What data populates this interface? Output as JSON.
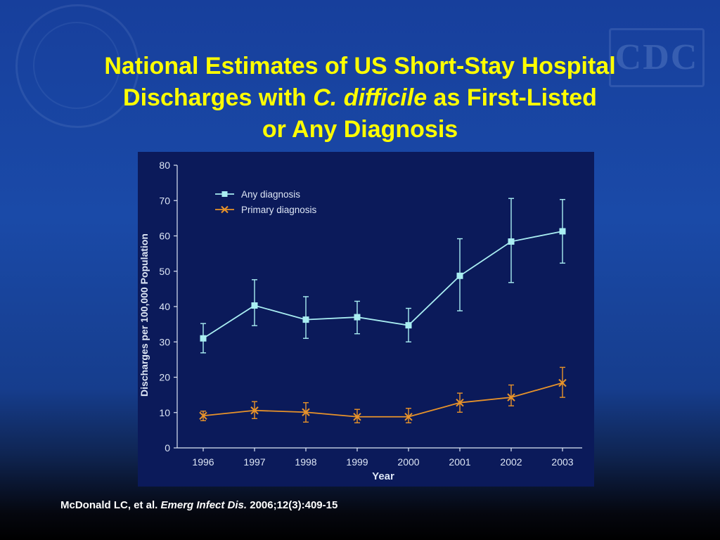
{
  "slide": {
    "title_line1": "National Estimates of US Short-Stay Hospital",
    "title_line2_prefix": "Discharges with ",
    "title_line2_italic": "C. difficile",
    "title_line2_suffix": " as First-Listed",
    "title_line3": "or Any Diagnosis",
    "citation_authors": "McDonald LC, et al. ",
    "citation_journal": "Emerg Infect Dis.",
    "citation_details": " 2006;12(3):409-15",
    "watermark_text": "CDC"
  },
  "colors": {
    "title": "#ffff00",
    "panel": "#0b1a5a",
    "any_diagnosis": "#a9eef2",
    "primary_diagnosis": "#e8932a",
    "axis": "#dde6f5"
  },
  "chart_data": {
    "type": "line",
    "title": "",
    "xlabel": "Year",
    "ylabel": "Discharges per 100,000 Population",
    "ylim": [
      0,
      80
    ],
    "yticks": [
      0,
      10,
      20,
      30,
      40,
      50,
      60,
      70,
      80
    ],
    "categories": [
      "1996",
      "1997",
      "1998",
      "1999",
      "2000",
      "2001",
      "2002",
      "2003"
    ],
    "legend_position": "top-left",
    "grid": false,
    "series": [
      {
        "name": "Any diagnosis",
        "marker": "square",
        "values": [
          31,
          40.3,
          36.3,
          37,
          34.7,
          48.7,
          58.4,
          61.3
        ],
        "err_low": [
          26.9,
          34.6,
          31,
          32.3,
          30,
          38.8,
          46.8,
          52.3
        ],
        "err_high": [
          35.2,
          47.6,
          42.8,
          41.5,
          39.5,
          59.2,
          70.6,
          70.3
        ]
      },
      {
        "name": "Primary diagnosis",
        "marker": "x",
        "values": [
          9.1,
          10.6,
          10.1,
          8.8,
          8.8,
          12.8,
          14.3,
          18.4
        ],
        "err_low": [
          7.7,
          8.3,
          7.3,
          7.1,
          7.1,
          10.1,
          11.9,
          14.3
        ],
        "err_high": [
          10.4,
          13.1,
          12.8,
          10.9,
          11.2,
          15.5,
          17.8,
          22.8
        ]
      }
    ]
  }
}
